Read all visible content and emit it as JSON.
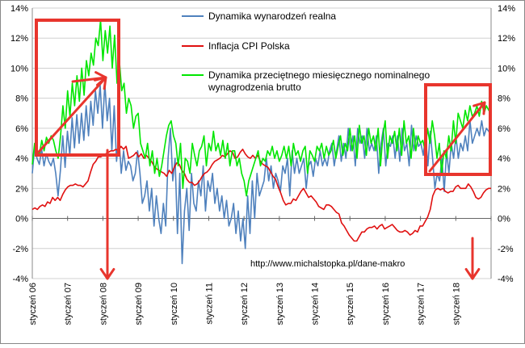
{
  "chart_data": {
    "type": "line",
    "y_axis_left": {
      "min": -4,
      "max": 14,
      "step": 2,
      "ticks": [
        "-4%",
        "-2%",
        "0%",
        "2%",
        "4%",
        "6%",
        "8%",
        "10%",
        "12%",
        "14%"
      ]
    },
    "y_axis_right": {
      "min": -4,
      "max": 14,
      "step": 2,
      "ticks": [
        "-4%",
        "-2%",
        "0%",
        "2%",
        "4%",
        "6%",
        "8%",
        "10%",
        "12%",
        "14%"
      ]
    },
    "x_axis": {
      "start": "2006-01",
      "end": "2018-12",
      "categories": [
        "styczeń 06",
        "styczeń 07",
        "styczeń 08",
        "styczeń 09",
        "styczeń 10",
        "styczeń 11",
        "styczeń 12",
        "styczeń 13",
        "styczeń 14",
        "styczeń 15",
        "styczeń 16",
        "styczeń 17",
        "styczeń 18"
      ]
    },
    "grid": "horizontal",
    "legend": [
      {
        "name": "Dynamika wynarodzeń realna",
        "color": "#4f81bd"
      },
      {
        "name": "Inflacja CPI Polska",
        "color": "#e01010"
      },
      {
        "name": "Dynamika przeciętnego miesięcznego nominalnego wynagrodzenia brutto",
        "color": "#00e600"
      }
    ],
    "annotation": "http://www.michalstopka.pl/dane-makro",
    "series": [
      {
        "name": "Dynamika wynarodzeń realna",
        "color": "#4f81bd",
        "values": [
          3.0,
          4.8,
          4.0,
          3.6,
          4.6,
          3.5,
          4.3,
          3.8,
          3.5,
          4.0,
          3.0,
          1.5,
          3.2,
          5.5,
          3.4,
          5.8,
          4.2,
          6.7,
          4.7,
          6.9,
          5.0,
          7.0,
          5.2,
          7.5,
          5.5,
          7.8,
          6.2,
          8.5,
          7.0,
          8.9,
          6.0,
          9.0,
          6.5,
          8.0,
          4.5,
          7.5,
          3.8,
          5.5,
          3.0,
          4.5,
          3.2,
          3.8,
          3.5,
          2.5,
          3.0,
          4.5,
          3.0,
          1.0,
          1.5,
          2.5,
          0.5,
          2.0,
          -0.5,
          1.5,
          0.0,
          -1.0,
          1.0,
          -0.5,
          4.0,
          6.0,
          2.5,
          4.0,
          -1.0,
          3.0,
          -3.0,
          0.5,
          2.0,
          -0.8,
          3.0,
          1.0,
          0.5,
          2.5,
          1.5,
          3.5,
          0.5,
          2.5,
          1.8,
          3.0,
          1.0,
          2.0,
          0.5,
          1.5,
          0.0,
          1.2,
          -0.5,
          0.0,
          1.0,
          -1.0,
          0.5,
          -1.5,
          0.0,
          -2.0,
          1.5,
          -1.0,
          2.5,
          0.0,
          3.0,
          1.5,
          2.0,
          2.5,
          4.0,
          2.5,
          3.5,
          2.0,
          3.0,
          2.5,
          1.8,
          3.5,
          3.0,
          4.0,
          1.5,
          4.5,
          3.0,
          4.0,
          3.0,
          3.5,
          4.0,
          2.0,
          3.5,
          3.8,
          2.8,
          4.0,
          3.5,
          4.5,
          3.5,
          4.0,
          3.5,
          4.5,
          5.0,
          3.5,
          4.5,
          5.5,
          3.8,
          5.0,
          4.0,
          6.0,
          4.5,
          5.5,
          3.5,
          6.0,
          5.0,
          5.5,
          4.0,
          6.0,
          4.5,
          5.0,
          4.5,
          5.5,
          3.0,
          5.0,
          6.0,
          3.5,
          5.0,
          4.8,
          5.5,
          4.0,
          5.5,
          3.8,
          6.0,
          4.5,
          5.0,
          3.5,
          6.2,
          4.5,
          5.5,
          4.8,
          5.0,
          4.2,
          5.5,
          3.5,
          5.8,
          4.0,
          2.0,
          3.0,
          2.5,
          4.0,
          1.8,
          4.5,
          3.0,
          5.0,
          4.0,
          5.5,
          4.0,
          5.0,
          4.5,
          5.5,
          4.5,
          6.5,
          5.0,
          5.5,
          6.0,
          5.5,
          6.5,
          5.5,
          6.0,
          5.8,
          5.5
        ]
      },
      {
        "name": "Inflacja CPI Polska",
        "color": "#e01010",
        "values": [
          0.6,
          0.7,
          0.6,
          0.8,
          0.9,
          0.8,
          1.1,
          1.0,
          1.4,
          1.2,
          1.4,
          1.2,
          1.6,
          1.9,
          2.1,
          2.2,
          2.2,
          2.3,
          2.2,
          2.2,
          2.1,
          2.3,
          2.5,
          3.1,
          3.6,
          3.8,
          4.1,
          4.1,
          4.2,
          4.3,
          4.4,
          4.5,
          4.5,
          4.6,
          4.5,
          4.8,
          4.6,
          4.8,
          4.0,
          4.1,
          4.2,
          4.4,
          4.1,
          4.3,
          4.0,
          4.2,
          4.0,
          3.8,
          3.5,
          3.3,
          3.2,
          3.1,
          3.0,
          2.8,
          3.2,
          3.0,
          3.4,
          3.7,
          3.6,
          3.2,
          3.0,
          2.6,
          2.4,
          2.4,
          2.2,
          2.3,
          2.5,
          2.8,
          3.0,
          3.1,
          3.3,
          3.6,
          3.8,
          3.9,
          4.0,
          4.2,
          4.1,
          4.3,
          4.5,
          4.4,
          4.0,
          4.1,
          4.4,
          4.6,
          4.3,
          4.1,
          4.0,
          4.2,
          4.0,
          4.2,
          3.8,
          3.6,
          3.5,
          3.4,
          3.1,
          2.8,
          2.6,
          2.1,
          1.7,
          1.2,
          0.9,
          1.0,
          1.0,
          1.3,
          1.2,
          1.5,
          1.8,
          2.0,
          1.7,
          1.4,
          1.5,
          1.3,
          1.1,
          0.8,
          0.7,
          0.6,
          0.9,
          0.9,
          0.8,
          0.6,
          0.4,
          0.3,
          -0.3,
          -0.5,
          -0.8,
          -1.1,
          -1.3,
          -1.5,
          -1.5,
          -1.2,
          -0.9,
          -0.9,
          -0.7,
          -0.6,
          -0.6,
          -0.5,
          -0.7,
          -0.5,
          -0.4,
          -0.7,
          -0.6,
          -0.5,
          -0.4,
          -0.6,
          -0.8,
          -0.9,
          -0.9,
          -0.8,
          -0.9,
          -1.1,
          -1.0,
          -0.8,
          -0.9,
          -0.5,
          -0.5,
          -0.2,
          0.1,
          0.6,
          1.5,
          1.9,
          2.0,
          1.9,
          2.0,
          1.8,
          1.7,
          1.8,
          1.8,
          2.1,
          2.2,
          2.0,
          2.0,
          2.0,
          2.3,
          2.1,
          1.8,
          1.4,
          1.3,
          1.4,
          1.7,
          1.9,
          2.0,
          2.0
        ]
      },
      {
        "name": "Dynamika przeciętnego miesięcznego nominalnego wynagrodzenia brutto",
        "color": "#00e600",
        "values": [
          3.6,
          5.0,
          4.5,
          4.2,
          5.2,
          4.5,
          5.4,
          5.0,
          5.5,
          5.2,
          4.5,
          4.0,
          5.5,
          7.5,
          6.0,
          8.5,
          6.8,
          9.0,
          7.5,
          9.5,
          7.8,
          10.0,
          8.2,
          10.5,
          9.5,
          11.0,
          10.2,
          12.0,
          11.5,
          13.2,
          10.5,
          12.5,
          11.0,
          12.8,
          10.0,
          12.2,
          9.0,
          10.5,
          8.5,
          9.0,
          7.0,
          8.0,
          7.5,
          6.0,
          6.8,
          7.0,
          5.0,
          4.5,
          4.0,
          5.0,
          3.5,
          4.5,
          3.0,
          4.0,
          2.8,
          3.5,
          4.5,
          5.5,
          6.2,
          6.5,
          5.5,
          5.0,
          3.5,
          5.0,
          2.0,
          4.0,
          3.8,
          3.0,
          5.0,
          4.2,
          3.5,
          4.5,
          4.8,
          5.5,
          3.5,
          5.0,
          4.5,
          5.8,
          4.5,
          5.0,
          4.2,
          5.2,
          4.0,
          5.0,
          3.5,
          4.5,
          4.5,
          3.5,
          4.0,
          3.0,
          2.5,
          1.5,
          2.5,
          3.0,
          3.5,
          4.0,
          4.5,
          3.5,
          4.0,
          3.8,
          4.5,
          4.2,
          4.8,
          4.0,
          4.5,
          3.8,
          4.2,
          4.8,
          4.0,
          4.8,
          3.5,
          5.0,
          4.2,
          4.5,
          3.8,
          4.5,
          4.8,
          3.0,
          4.5,
          4.2,
          3.8,
          4.8,
          4.5,
          5.0,
          4.0,
          4.8,
          4.2,
          4.5,
          5.2,
          4.0,
          4.8,
          5.5,
          4.2,
          5.0,
          4.5,
          6.0,
          4.5,
          5.5,
          4.0,
          6.2,
          5.0,
          5.5,
          4.2,
          6.0,
          5.0,
          5.5,
          4.5,
          6.0,
          3.5,
          5.5,
          6.5,
          4.0,
          5.5,
          5.0,
          5.8,
          4.5,
          6.0,
          4.2,
          6.5,
          5.0,
          5.5,
          4.0,
          6.0,
          4.5,
          5.5,
          5.0,
          5.2,
          4.5,
          6.0,
          5.0,
          6.5,
          5.5,
          4.0,
          5.0,
          3.0,
          4.5,
          4.0,
          5.5,
          4.5,
          6.5,
          5.0,
          7.0,
          6.5,
          6.0,
          7.2,
          6.5,
          7.5,
          6.8,
          7.0,
          7.5,
          6.8,
          7.8,
          7.0,
          7.5,
          7.2,
          7.0
        ]
      }
    ]
  }
}
